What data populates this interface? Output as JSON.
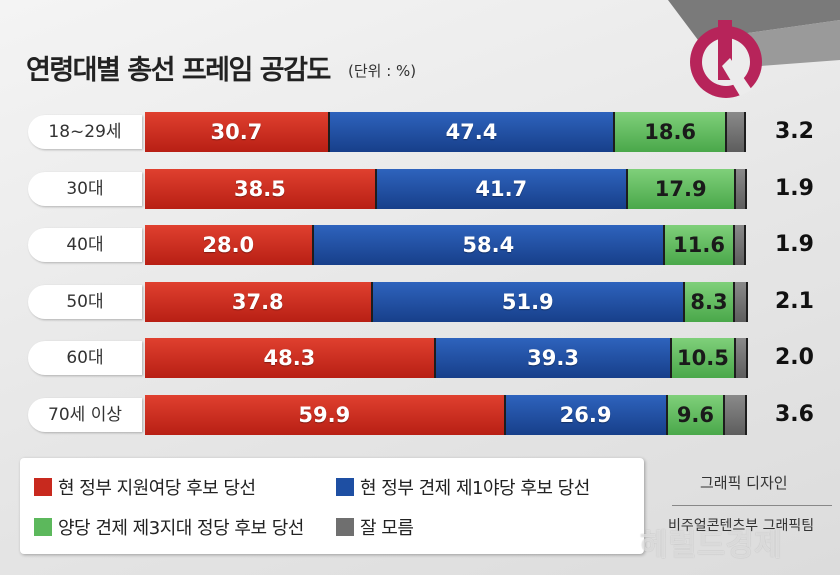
{
  "title": "연령대별 총선 프레임 공감도",
  "unit": "(단위 : %)",
  "colors": {
    "red": "#c8291e",
    "blue": "#1e4fa3",
    "green": "#5cb85c",
    "gray": "#6f6f6f"
  },
  "chart_data": {
    "type": "bar",
    "orientation": "horizontal-stacked",
    "title": "연령대별 총선 프레임 공감도",
    "unit": "(단위 : %)",
    "categories": [
      "18~29세",
      "30대",
      "40대",
      "50대",
      "60대",
      "70세 이상"
    ],
    "series": [
      {
        "name": "현 정부 지원여당 후보 당선",
        "color": "#c8291e",
        "values": [
          30.7,
          38.5,
          28.0,
          37.8,
          48.3,
          59.9
        ]
      },
      {
        "name": "현 정부 견제 제1야당 후보 당선",
        "color": "#1e4fa3",
        "values": [
          47.4,
          41.7,
          58.4,
          51.9,
          39.3,
          26.9
        ]
      },
      {
        "name": "양당 견제 제3지대 정당 후보 당선",
        "color": "#5cb85c",
        "values": [
          18.6,
          17.9,
          11.6,
          8.3,
          10.5,
          9.6
        ]
      },
      {
        "name": "잘 모름",
        "color": "#6f6f6f",
        "values": [
          3.2,
          1.9,
          1.9,
          2.1,
          2.0,
          3.6
        ]
      }
    ],
    "legend": "bottom"
  },
  "credit": {
    "line1": "그래픽 디자인",
    "line2": "비주얼콘텐츠부 그래픽팀"
  },
  "watermark": "헤럴드경제"
}
